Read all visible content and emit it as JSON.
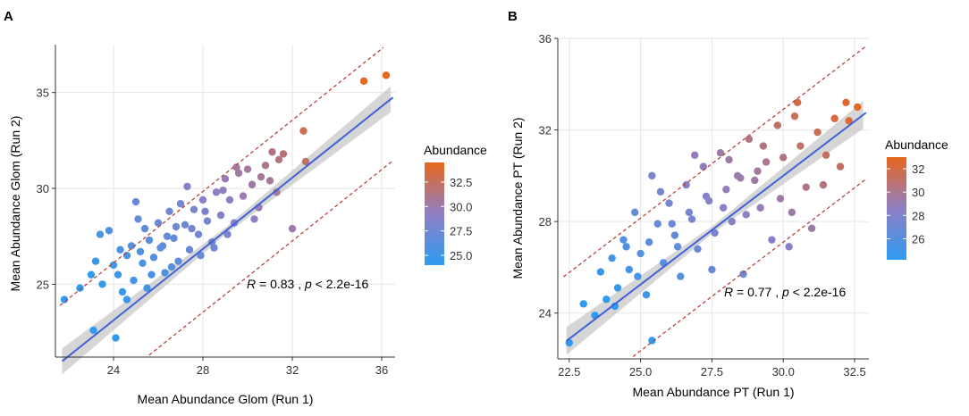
{
  "chart_data": [
    {
      "panel_label": "A",
      "type": "scatter",
      "xlabel": "Mean Abundance Glom (Run 1)",
      "ylabel": "Mean Abundance Glom (Run 2)",
      "xlim": [
        21.4,
        36.6
      ],
      "ylim": [
        21.2,
        37.5
      ],
      "xticks": [
        24,
        28,
        32,
        36
      ],
      "yticks": [
        25,
        30,
        35
      ],
      "fit": {
        "intercept": 0.8,
        "slope": 0.93,
        "band_lower_offset": -3.3,
        "band_upper_offset": 3.0
      },
      "annotation": {
        "r_label": "R",
        "r_text": " = 0.83 , ",
        "p_label": "p",
        "p_text": " < 2.2e-16"
      },
      "legend": {
        "title": "Abundance",
        "color_low": "#2f9bf0",
        "color_mid": "#8e7fc4",
        "color_high": "#e8661e",
        "range": [
          24.0,
          34.5
        ],
        "ticks": [
          "32.5",
          "30.0",
          "27.5",
          "25.0"
        ],
        "tick_values": [
          32.5,
          30.0,
          27.5,
          25.0
        ]
      },
      "points": [
        [
          21.8,
          24.2
        ],
        [
          22.5,
          24.8
        ],
        [
          23.0,
          25.5
        ],
        [
          23.2,
          26.2
        ],
        [
          23.5,
          25.0
        ],
        [
          23.4,
          27.6
        ],
        [
          23.8,
          27.8
        ],
        [
          24.0,
          26.0
        ],
        [
          24.2,
          25.5
        ],
        [
          24.4,
          24.6
        ],
        [
          24.6,
          26.5
        ],
        [
          24.8,
          27.0
        ],
        [
          24.9,
          25.2
        ],
        [
          25.1,
          28.4
        ],
        [
          25.3,
          26.1
        ],
        [
          25.5,
          24.8
        ],
        [
          25.6,
          27.3
        ],
        [
          25.8,
          26.4
        ],
        [
          26.0,
          28.2
        ],
        [
          26.2,
          27.0
        ],
        [
          26.3,
          25.6
        ],
        [
          26.5,
          28.8
        ],
        [
          26.7,
          27.4
        ],
        [
          26.9,
          26.2
        ],
        [
          27.0,
          29.2
        ],
        [
          27.2,
          28.1
        ],
        [
          27.4,
          26.8
        ],
        [
          27.6,
          28.9
        ],
        [
          27.8,
          27.6
        ],
        [
          28.0,
          29.4
        ],
        [
          28.2,
          28.3
        ],
        [
          28.4,
          27.2
        ],
        [
          28.6,
          29.8
        ],
        [
          28.8,
          28.6
        ],
        [
          29.0,
          30.5
        ],
        [
          29.2,
          29.4
        ],
        [
          29.4,
          28.2
        ],
        [
          29.6,
          30.8
        ],
        [
          29.8,
          29.6
        ],
        [
          30.0,
          31.0
        ],
        [
          30.2,
          30.2
        ],
        [
          30.5,
          29.0
        ],
        [
          30.8,
          31.2
        ],
        [
          31.0,
          30.4
        ],
        [
          31.3,
          29.8
        ],
        [
          31.6,
          31.8
        ],
        [
          32.0,
          27.9
        ],
        [
          32.5,
          33.0
        ],
        [
          32.6,
          31.4
        ],
        [
          35.2,
          35.6
        ],
        [
          36.2,
          35.9
        ],
        [
          23.1,
          22.6
        ],
        [
          24.1,
          22.2
        ],
        [
          24.6,
          24.2
        ],
        [
          25.0,
          29.3
        ],
        [
          25.4,
          27.9
        ],
        [
          26.1,
          26.9
        ],
        [
          26.6,
          25.9
        ],
        [
          27.3,
          30.1
        ],
        [
          27.9,
          26.5
        ],
        [
          28.5,
          26.9
        ],
        [
          29.1,
          27.6
        ],
        [
          30.3,
          28.4
        ],
        [
          31.1,
          31.9
        ],
        [
          24.3,
          26.8
        ],
        [
          25.7,
          25.5
        ],
        [
          26.8,
          28.0
        ],
        [
          27.5,
          27.9
        ],
        [
          28.1,
          28.8
        ],
        [
          28.9,
          29.9
        ],
        [
          29.5,
          31.1
        ],
        [
          30.6,
          30.6
        ],
        [
          31.4,
          31.5
        ],
        [
          25.2,
          26.7
        ],
        [
          26.4,
          27.5
        ]
      ]
    },
    {
      "panel_label": "B",
      "type": "scatter",
      "xlabel": "Mean Abundance PT (Run 1)",
      "ylabel": "Mean Abundance PT (Run 2)",
      "xlim": [
        22.1,
        33.0
      ],
      "ylim": [
        22.0,
        36.0
      ],
      "xticks": [
        "22.5",
        "25.0",
        "27.5",
        "30.0",
        "32.5"
      ],
      "xtick_values": [
        22.5,
        25.0,
        27.5,
        30.0,
        32.5
      ],
      "yticks": [
        24,
        28,
        32,
        36
      ],
      "fit": {
        "intercept": 1.5,
        "slope": 0.95,
        "band_lower_offset": -2.9,
        "band_upper_offset": 2.9
      },
      "annotation": {
        "r_label": "R",
        "r_text": " = 0.77 , ",
        "p_label": "p",
        "p_text": " < 2.2e-16"
      },
      "legend": {
        "title": "Abundance",
        "color_low": "#2f9bf0",
        "color_mid": "#8e7fc4",
        "color_high": "#e8661e",
        "range": [
          24.2,
          33.0
        ],
        "ticks": [
          "32",
          "30",
          "28",
          "26"
        ],
        "tick_values": [
          32,
          30,
          28,
          26
        ]
      },
      "points": [
        [
          22.5,
          22.7
        ],
        [
          23.0,
          24.4
        ],
        [
          23.4,
          23.9
        ],
        [
          23.6,
          25.8
        ],
        [
          23.8,
          24.6
        ],
        [
          24.0,
          26.4
        ],
        [
          24.2,
          25.1
        ],
        [
          24.4,
          27.2
        ],
        [
          24.6,
          25.9
        ],
        [
          24.8,
          28.4
        ],
        [
          25.0,
          26.6
        ],
        [
          25.2,
          24.8
        ],
        [
          25.4,
          30.0
        ],
        [
          25.4,
          22.8
        ],
        [
          25.6,
          27.9
        ],
        [
          25.8,
          26.2
        ],
        [
          26.0,
          28.8
        ],
        [
          26.2,
          27.4
        ],
        [
          26.4,
          25.6
        ],
        [
          26.6,
          29.6
        ],
        [
          26.8,
          28.1
        ],
        [
          27.0,
          26.8
        ],
        [
          27.2,
          30.4
        ],
        [
          27.4,
          28.9
        ],
        [
          27.6,
          27.5
        ],
        [
          27.8,
          31.0
        ],
        [
          28.0,
          29.4
        ],
        [
          28.2,
          28.0
        ],
        [
          28.4,
          30.0
        ],
        [
          28.6,
          25.7
        ],
        [
          28.8,
          31.6
        ],
        [
          29.0,
          29.8
        ],
        [
          29.2,
          28.6
        ],
        [
          29.4,
          30.6
        ],
        [
          29.6,
          27.2
        ],
        [
          29.8,
          32.2
        ],
        [
          30.0,
          30.8
        ],
        [
          30.2,
          26.9
        ],
        [
          30.4,
          32.6
        ],
        [
          30.5,
          33.2
        ],
        [
          30.6,
          31.3
        ],
        [
          30.8,
          29.5
        ],
        [
          31.0,
          27.7
        ],
        [
          31.2,
          31.9
        ],
        [
          31.4,
          29.6
        ],
        [
          31.8,
          32.5
        ],
        [
          32.0,
          30.4
        ],
        [
          32.2,
          33.2
        ],
        [
          32.6,
          33.0
        ],
        [
          32.3,
          32.4
        ],
        [
          24.1,
          24.3
        ],
        [
          24.9,
          25.6
        ],
        [
          25.7,
          29.3
        ],
        [
          26.3,
          26.9
        ],
        [
          26.9,
          30.9
        ],
        [
          27.5,
          25.9
        ],
        [
          28.1,
          30.7
        ],
        [
          28.7,
          28.3
        ],
        [
          29.3,
          31.3
        ],
        [
          29.9,
          29.0
        ],
        [
          30.3,
          28.4
        ],
        [
          31.5,
          30.9
        ],
        [
          24.5,
          26.9
        ],
        [
          25.3,
          27.1
        ],
        [
          26.1,
          27.9
        ],
        [
          26.7,
          28.4
        ],
        [
          27.3,
          29.1
        ],
        [
          27.9,
          28.6
        ],
        [
          28.5,
          29.9
        ],
        [
          29.1,
          30.2
        ]
      ]
    }
  ]
}
